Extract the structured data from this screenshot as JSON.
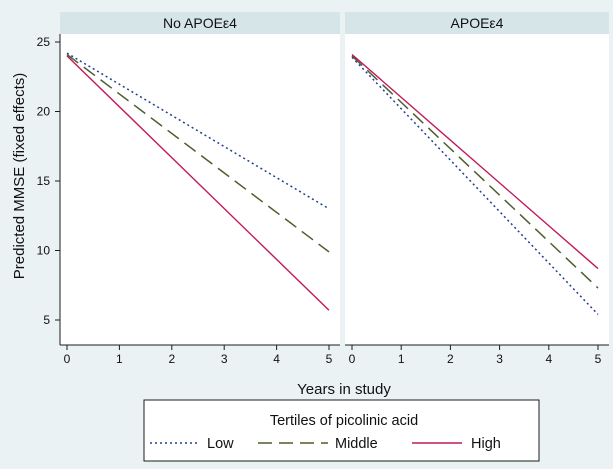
{
  "chart_data": {
    "type": "line",
    "xlabel": "Years in study",
    "ylabel": "Predicted MMSE (fixed effects)",
    "xlim": [
      0,
      5
    ],
    "ylim": [
      4.8,
      25.5
    ],
    "x_ticks": [
      0,
      1,
      2,
      3,
      4,
      5
    ],
    "y_ticks": [
      5,
      10,
      15,
      20,
      25
    ],
    "grid": false,
    "legend": {
      "title": "Tertiles of picolinic acid",
      "placement": "bottom-center",
      "entries": [
        "Low",
        "Middle",
        "High"
      ]
    },
    "series_styles": [
      {
        "name": "Low",
        "color": "#1f3f8f",
        "style": "dotted"
      },
      {
        "name": "Middle",
        "color": "#4c5f2c",
        "style": "long-dash"
      },
      {
        "name": "High",
        "color": "#c2185b",
        "style": "solid"
      }
    ],
    "panels": [
      {
        "title": "No APOEε4",
        "x": [
          0,
          5
        ],
        "series": [
          {
            "name": "Low",
            "values": [
              24.2,
              13.0
            ]
          },
          {
            "name": "Middle",
            "values": [
              24.1,
              9.9
            ]
          },
          {
            "name": "High",
            "values": [
              24.0,
              5.7
            ]
          }
        ]
      },
      {
        "title": "APOEε4",
        "x": [
          0,
          5
        ],
        "series": [
          {
            "name": "Low",
            "values": [
              23.9,
              5.4
            ]
          },
          {
            "name": "Middle",
            "values": [
              24.0,
              7.3
            ]
          },
          {
            "name": "High",
            "values": [
              24.1,
              8.7
            ]
          }
        ]
      }
    ]
  }
}
